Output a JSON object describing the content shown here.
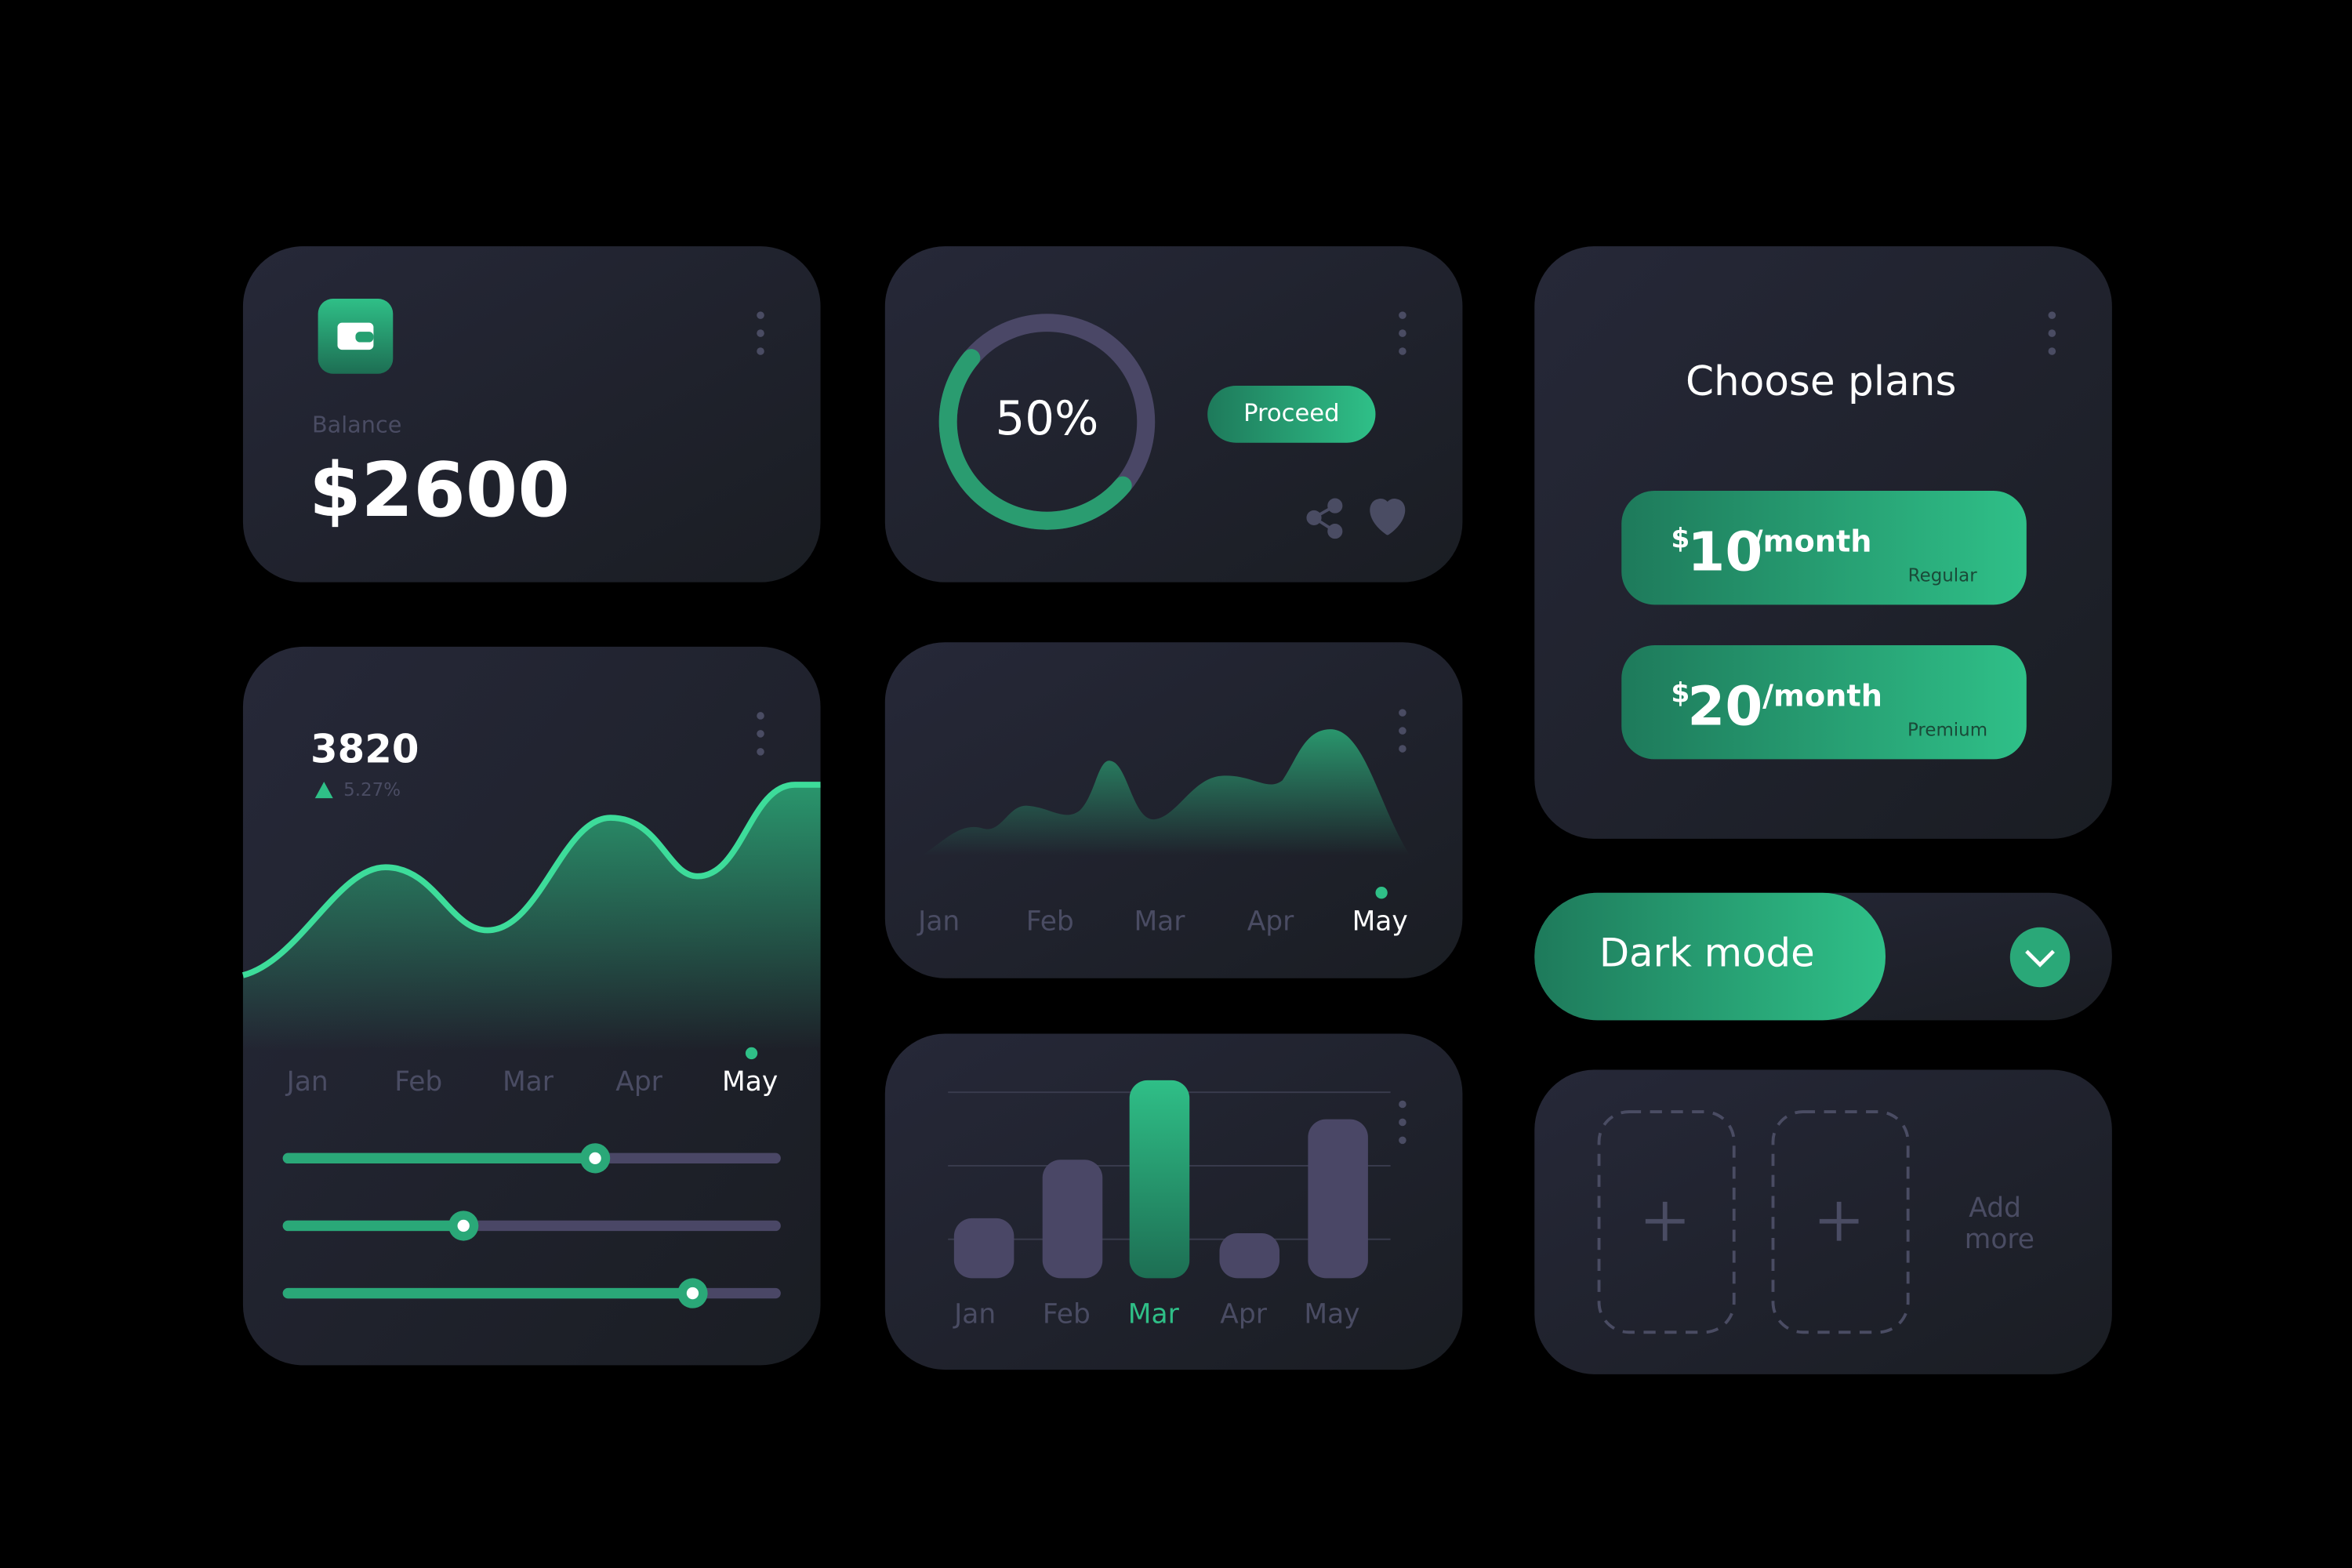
{
  "balance": {
    "label": "Balance",
    "amount": "$2600"
  },
  "progress": {
    "value": 50,
    "label": "50%",
    "button": "Proceed"
  },
  "plans": {
    "title": "Choose plans",
    "items": [
      {
        "currency": "$",
        "price": "10",
        "period": "/month",
        "name": "Regular"
      },
      {
        "currency": "$",
        "price": "20",
        "period": "/month",
        "name": "Premium"
      }
    ]
  },
  "stats": {
    "value": "3820",
    "change": "5.27%",
    "months": [
      "Jan",
      "Feb",
      "Mar",
      "Apr",
      "May"
    ],
    "selected": 4,
    "sliders": [
      63,
      36,
      83
    ]
  },
  "area": {
    "months": [
      "Jan",
      "Feb",
      "Mar",
      "Apr",
      "May"
    ],
    "selected": 4
  },
  "bars": {
    "months": [
      "Jan",
      "Feb",
      "Mar",
      "Apr",
      "May"
    ],
    "values": [
      40,
      79,
      132,
      30,
      106
    ],
    "highlight": 2
  },
  "theme": {
    "label": "Dark mode"
  },
  "add": {
    "label": [
      "Add",
      "more"
    ]
  }
}
